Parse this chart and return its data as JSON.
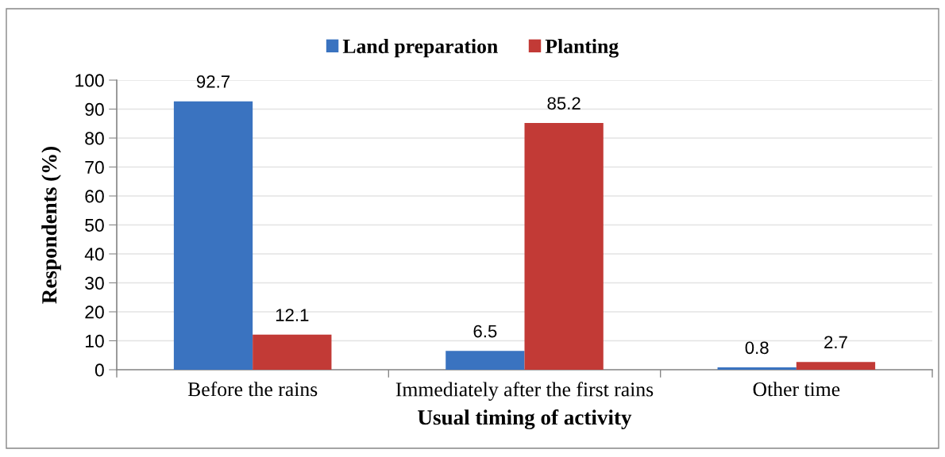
{
  "chart_data": {
    "type": "bar",
    "categories": [
      "Before the rains",
      "Immediately after the first rains",
      "Other time"
    ],
    "series": [
      {
        "name": "Land preparation",
        "color": "#3a73c0",
        "values": [
          92.7,
          6.5,
          0.8
        ]
      },
      {
        "name": "Planting",
        "color": "#c23a36",
        "values": [
          12.1,
          85.2,
          2.7
        ]
      }
    ],
    "xlabel": "Usual timing of activity",
    "ylabel": "Respondents (%)",
    "ylim": [
      0,
      100
    ],
    "yticks": [
      0,
      10,
      20,
      30,
      40,
      50,
      60,
      70,
      80,
      90,
      100
    ],
    "grid": "y",
    "legend": "top",
    "data_labels": true
  }
}
